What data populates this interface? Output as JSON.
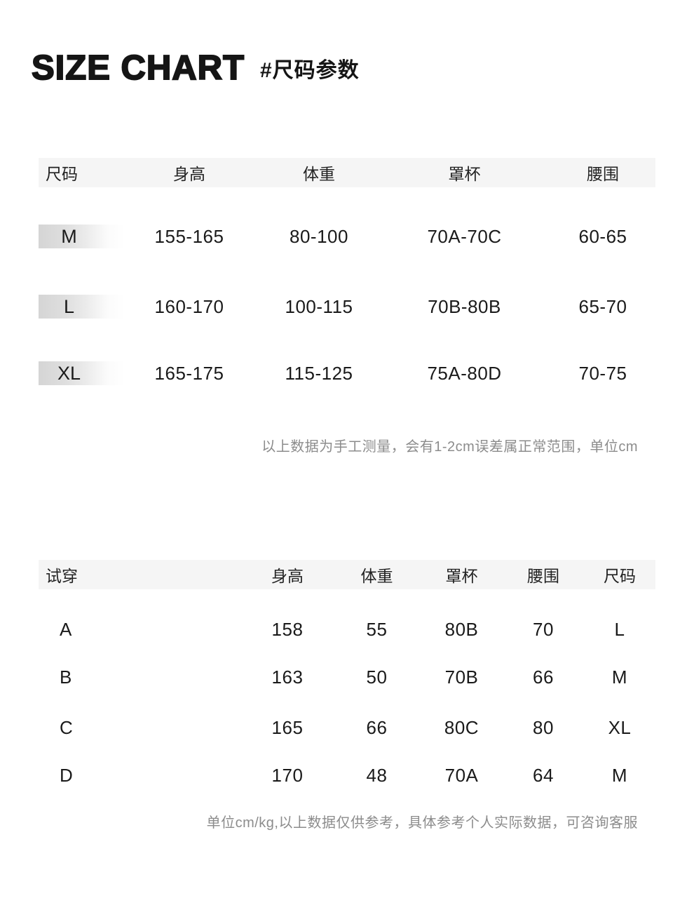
{
  "header": {
    "title": "SIZE CHART",
    "subtitle": "#尺码参数"
  },
  "size_table": {
    "headers": [
      "尺码",
      "身高",
      "体重",
      "罩杯",
      "腰围"
    ],
    "rows": [
      {
        "size": "M",
        "height": "155-165",
        "weight": "80-100",
        "cup": "70A-70C",
        "waist": "60-65"
      },
      {
        "size": "L",
        "height": "160-170",
        "weight": "100-115",
        "cup": "70B-80B",
        "waist": "65-70"
      },
      {
        "size": "XL",
        "height": "165-175",
        "weight": "115-125",
        "cup": "75A-80D",
        "waist": "70-75"
      }
    ],
    "note": "以上数据为手工测量，会有1-2cm误差属正常范围，单位cm"
  },
  "try_on_table": {
    "headers": [
      "试穿",
      "身高",
      "体重",
      "罩杯",
      "腰围",
      "尺码"
    ],
    "rows": [
      {
        "model": "A",
        "height": "158",
        "weight": "55",
        "cup": "80B",
        "waist": "70",
        "size": "L"
      },
      {
        "model": "B",
        "height": "163",
        "weight": "50",
        "cup": "70B",
        "waist": "66",
        "size": "M"
      },
      {
        "model": "C",
        "height": "165",
        "weight": "66",
        "cup": "80C",
        "waist": "80",
        "size": "XL"
      },
      {
        "model": "D",
        "height": "170",
        "weight": "48",
        "cup": "70A",
        "waist": "64",
        "size": "M"
      }
    ],
    "note": "单位cm/kg,以上数据仅供参考，具体参考个人实际数据，可咨询客服"
  },
  "colors": {
    "text": "#1a1a1a",
    "note_text": "#8c8c8c",
    "header_band": "#f5f5f5",
    "badge_gradient_start": "#d5d5d5"
  }
}
